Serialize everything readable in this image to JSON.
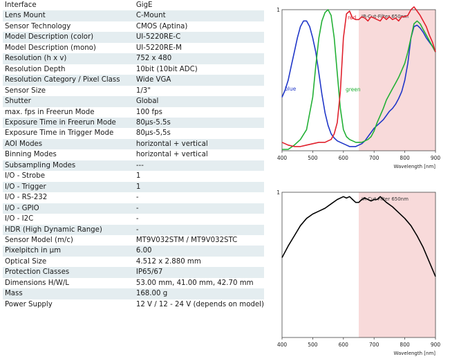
{
  "specs": [
    {
      "label": "Interface",
      "value": "GigE"
    },
    {
      "label": "Lens Mount",
      "value": "C-Mount"
    },
    {
      "label": "Sensor Technology",
      "value": "CMOS (Aptina)"
    },
    {
      "label": "Model Description (color)",
      "value": "UI-5220RE-C"
    },
    {
      "label": "Model Description (mono)",
      "value": "UI-5220RE-M"
    },
    {
      "label": "Resolution (h x v)",
      "value": "752 x 480"
    },
    {
      "label": "Resolution Depth",
      "value": "10bit (10bit ADC)"
    },
    {
      "label": "Resolution Category / Pixel Class",
      "value": "Wide VGA"
    },
    {
      "label": "Sensor Size",
      "value": "1/3\""
    },
    {
      "label": "Shutter",
      "value": "Global"
    },
    {
      "label": "max. fps in Freerun Mode",
      "value": "100 fps"
    },
    {
      "label": "Exposure Time in Freerun Mode",
      "value": "80µs-5.5s"
    },
    {
      "label": "Exposure Time in Trigger Mode",
      "value": "80µs-5,5s"
    },
    {
      "label": "AOI Modes",
      "value": "horizontal + vertical"
    },
    {
      "label": "Binning Modes",
      "value": "horizontal + vertical"
    },
    {
      "label": "Subsampling Modes",
      "value": "---"
    },
    {
      "label": "I/O - Strobe",
      "value": "1"
    },
    {
      "label": "I/O - Trigger",
      "value": "1"
    },
    {
      "label": "I/O - RS-232",
      "value": "-"
    },
    {
      "label": "I/O - GPIO",
      "value": "-"
    },
    {
      "label": "I/O - I2C",
      "value": "-"
    },
    {
      "label": "HDR (High Dynamic Range)",
      "value": "-"
    },
    {
      "label": "Sensor Model (m/c)",
      "value": "MT9V032STM / MT9V032STC"
    },
    {
      "label": "Pixelpitch in µm",
      "value": "6.00"
    },
    {
      "label": "Optical Size",
      "value": "4.512 x 2.880 mm"
    },
    {
      "label": "Protection Classes",
      "value": "IP65/67"
    },
    {
      "label": "Dimensions H/W/L",
      "value": "53.00 mm, 41.00 mm, 42.70 mm"
    },
    {
      "label": "Mass",
      "value": "168.00 g"
    },
    {
      "label": "Power Supply",
      "value": "12 V / 12 - 24 V (depends on model)"
    }
  ],
  "chart_data": [
    {
      "type": "line",
      "title": "",
      "xlabel": "Wavelength [nm]",
      "ylabel": "",
      "xlim": [
        400,
        900
      ],
      "ylim": [
        0,
        1
      ],
      "xticks": [
        400,
        500,
        600,
        700,
        800,
        900
      ],
      "yticks": [
        1
      ],
      "grid": false,
      "annotation": {
        "text": "IR-Cut-Filter 650nm",
        "region": [
          650,
          900
        ],
        "color": "#f8dada"
      },
      "series": [
        {
          "name": "blue",
          "color": "#1f36c8",
          "x": [
            400,
            410,
            420,
            430,
            440,
            450,
            460,
            470,
            480,
            490,
            500,
            510,
            520,
            530,
            540,
            550,
            560,
            570,
            580,
            590,
            600,
            610,
            620,
            630,
            640,
            650,
            660,
            670,
            680,
            690,
            700,
            710,
            720,
            730,
            740,
            750,
            760,
            770,
            780,
            790,
            800,
            810,
            820,
            830,
            840,
            850,
            860,
            870,
            880,
            890,
            900
          ],
          "y": [
            0.38,
            0.43,
            0.5,
            0.6,
            0.7,
            0.8,
            0.88,
            0.92,
            0.92,
            0.88,
            0.8,
            0.7,
            0.55,
            0.4,
            0.27,
            0.18,
            0.12,
            0.09,
            0.07,
            0.06,
            0.05,
            0.04,
            0.03,
            0.03,
            0.03,
            0.04,
            0.05,
            0.07,
            0.1,
            0.13,
            0.16,
            0.18,
            0.2,
            0.22,
            0.25,
            0.28,
            0.3,
            0.33,
            0.37,
            0.42,
            0.5,
            0.62,
            0.8,
            0.88,
            0.89,
            0.87,
            0.84,
            0.8,
            0.77,
            0.74,
            0.7
          ]
        },
        {
          "name": "green",
          "color": "#22b035",
          "x": [
            400,
            420,
            440,
            460,
            480,
            500,
            510,
            520,
            530,
            540,
            550,
            560,
            570,
            580,
            590,
            600,
            610,
            620,
            630,
            640,
            650,
            660,
            670,
            680,
            690,
            700,
            710,
            720,
            730,
            740,
            750,
            760,
            770,
            780,
            790,
            800,
            810,
            820,
            830,
            840,
            850,
            860,
            870,
            880,
            890,
            900
          ],
          "y": [
            0.01,
            0.01,
            0.04,
            0.08,
            0.15,
            0.38,
            0.6,
            0.8,
            0.92,
            0.98,
            1.0,
            0.96,
            0.8,
            0.55,
            0.3,
            0.15,
            0.1,
            0.08,
            0.07,
            0.06,
            0.06,
            0.06,
            0.07,
            0.08,
            0.1,
            0.14,
            0.2,
            0.25,
            0.3,
            0.36,
            0.4,
            0.44,
            0.48,
            0.52,
            0.57,
            0.62,
            0.7,
            0.8,
            0.9,
            0.92,
            0.9,
            0.86,
            0.82,
            0.78,
            0.74,
            0.7
          ]
        },
        {
          "name": "red",
          "color": "#e0202c",
          "x": [
            400,
            420,
            440,
            460,
            480,
            500,
            520,
            540,
            550,
            560,
            570,
            580,
            590,
            600,
            610,
            620,
            630,
            640,
            650,
            660,
            670,
            680,
            690,
            700,
            710,
            720,
            730,
            740,
            750,
            760,
            770,
            780,
            790,
            800,
            810,
            820,
            830,
            840,
            850,
            860,
            870,
            880,
            890,
            900
          ],
          "y": [
            0.06,
            0.04,
            0.03,
            0.03,
            0.04,
            0.05,
            0.06,
            0.06,
            0.07,
            0.08,
            0.12,
            0.2,
            0.42,
            0.8,
            0.97,
            0.99,
            0.94,
            0.93,
            0.93,
            0.95,
            0.94,
            0.92,
            0.95,
            0.94,
            0.93,
            0.92,
            0.95,
            0.93,
            0.95,
            0.93,
            0.94,
            0.92,
            0.95,
            0.95,
            0.96,
            1.0,
            1.02,
            0.99,
            0.96,
            0.92,
            0.88,
            0.82,
            0.77,
            0.7
          ]
        }
      ]
    },
    {
      "type": "line",
      "title": "",
      "xlabel": "Wavelength [nm]",
      "ylabel": "",
      "xlim": [
        400,
        900
      ],
      "ylim": [
        0,
        1
      ],
      "xticks": [
        400,
        500,
        600,
        700,
        800,
        900
      ],
      "yticks": [
        1
      ],
      "grid": false,
      "annotation": {
        "text": "IR-Cut-Filter 650nm",
        "region": [
          650,
          900
        ],
        "color": "#f8dada"
      },
      "series": [
        {
          "name": "",
          "color": "#000000",
          "x": [
            400,
            420,
            440,
            460,
            480,
            500,
            520,
            540,
            560,
            580,
            600,
            610,
            620,
            630,
            640,
            650,
            660,
            670,
            680,
            690,
            700,
            710,
            720,
            730,
            740,
            760,
            780,
            800,
            820,
            840,
            860,
            880,
            900
          ],
          "y": [
            0.55,
            0.63,
            0.7,
            0.77,
            0.82,
            0.85,
            0.87,
            0.89,
            0.92,
            0.95,
            0.97,
            0.96,
            0.97,
            0.95,
            0.93,
            0.93,
            0.95,
            0.96,
            0.95,
            0.94,
            0.95,
            0.95,
            0.97,
            0.95,
            0.93,
            0.9,
            0.86,
            0.82,
            0.77,
            0.7,
            0.62,
            0.52,
            0.42
          ]
        }
      ]
    }
  ]
}
